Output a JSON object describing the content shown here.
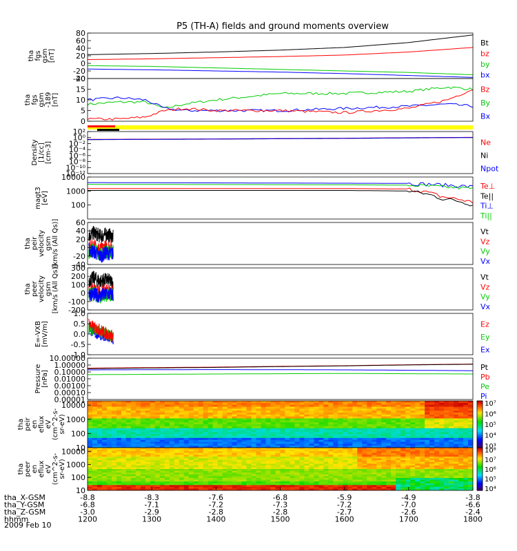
{
  "chart_data": {
    "type": "line",
    "title": "P5 (TH-A) fields and ground moments overview",
    "x_range": [
      1200,
      1800
    ],
    "panels": [
      {
        "id": "fgs-gsm",
        "ylabel": [
          "tha",
          "fgs",
          "gsm",
          "[nT]"
        ],
        "ylim": [
          -40,
          80
        ],
        "ticks": [
          -40,
          -20,
          0,
          20,
          40,
          60,
          80
        ],
        "legend": [
          {
            "name": "Bt",
            "color": "#000000"
          },
          {
            "name": "bz",
            "color": "#ff0000"
          },
          {
            "name": "by",
            "color": "#00cc00"
          },
          {
            "name": "bx",
            "color": "#0000ff"
          }
        ],
        "series": [
          {
            "name": "Bt",
            "color": "#000000",
            "x": [
              1200,
              1300,
              1400,
              1500,
              1600,
              1700,
              1800
            ],
            "values": [
              23,
              26,
              30,
              35,
              42,
              55,
              75
            ]
          },
          {
            "name": "bz",
            "color": "#ff0000",
            "x": [
              1200,
              1300,
              1400,
              1500,
              1600,
              1700,
              1800
            ],
            "values": [
              10,
              12,
              15,
              18,
              22,
              30,
              42
            ]
          },
          {
            "name": "by",
            "color": "#00cc00",
            "x": [
              1200,
              1300,
              1400,
              1500,
              1600,
              1700,
              1800
            ],
            "values": [
              -6,
              -8,
              -12,
              -16,
              -20,
              -24,
              -30
            ]
          },
          {
            "name": "bx",
            "color": "#0000ff",
            "x": [
              1200,
              1300,
              1400,
              1500,
              1600,
              1700,
              1800
            ],
            "values": [
              -15,
              -17,
              -20,
              -23,
              -27,
              -32,
              -37
            ]
          }
        ]
      },
      {
        "id": "fgs-189",
        "ylabel": [
          "tha",
          "fgs",
          "gsm",
          "-189",
          "[nT]"
        ],
        "ylim": [
          0,
          20
        ],
        "ticks": [
          0,
          5,
          10,
          15,
          20
        ],
        "legend": [
          {
            "name": "Bz",
            "color": "#ff0000"
          },
          {
            "name": "By",
            "color": "#00cc00"
          },
          {
            "name": "Bx",
            "color": "#0000ff"
          }
        ],
        "series": [
          {
            "name": "By",
            "color": "#00cc00",
            "x": [
              1200,
              1250,
              1290,
              1320,
              1350,
              1400,
              1500,
              1600,
              1700,
              1760,
              1800
            ],
            "values": [
              8,
              9,
              9,
              6,
              8,
              10,
              13,
              13,
              14,
              16,
              15
            ]
          },
          {
            "name": "Bx",
            "color": "#0000ff",
            "x": [
              1200,
              1250,
              1290,
              1320,
              1350,
              1400,
              1500,
              1600,
              1700,
              1760,
              1800
            ],
            "values": [
              10,
              11,
              10,
              6,
              5,
              5,
              5,
              6,
              7,
              8,
              7
            ]
          },
          {
            "name": "Bz",
            "color": "#ff0000",
            "x": [
              1200,
              1250,
              1290,
              1320,
              1350,
              1400,
              1500,
              1600,
              1700,
              1760,
              1800
            ],
            "values": [
              1,
              1,
              2,
              5,
              6,
              5,
              5,
              4,
              6,
              10,
              15
            ]
          }
        ]
      },
      {
        "id": "density",
        "ylabel": [
          "Density",
          "[1/cc]",
          "[cm-3]"
        ],
        "ylim_log": [
          -12,
          2
        ],
        "ticks_log": [
          -12,
          -10,
          -8,
          -6,
          -4,
          -2,
          0,
          2
        ],
        "legend": [
          {
            "name": "Ne",
            "color": "#ff0000"
          },
          {
            "name": "Ni",
            "color": "#000000"
          },
          {
            "name": "Npot",
            "color": "#0000ff"
          }
        ],
        "series": [
          {
            "name": "Ni",
            "color": "#000000",
            "x": [
              1200,
              1400,
              1600,
              1800
            ],
            "values": [
              0.2,
              0.3,
              0.5,
              1.0
            ]
          },
          {
            "name": "Ne",
            "color": "#ff0000",
            "x": [
              1200,
              1400,
              1600,
              1800
            ],
            "values": [
              0.25,
              0.35,
              0.6,
              1.2
            ]
          },
          {
            "name": "Npot",
            "color": "#0000ff",
            "x": [
              1200,
              1400,
              1600,
              1800
            ],
            "values": [
              0.22,
              0.32,
              0.55,
              1.1
            ]
          }
        ]
      },
      {
        "id": "temperature",
        "ylabel": [
          "magt3",
          "[eV]"
        ],
        "ylim_log": [
          1,
          4
        ],
        "ticks_log": [
          2,
          3,
          4
        ],
        "legend": [
          {
            "name": "Te⊥",
            "color": "#ff0000"
          },
          {
            "name": "Te||",
            "color": "#000000"
          },
          {
            "name": "Ti⊥",
            "color": "#0000ff"
          },
          {
            "name": "Ti||",
            "color": "#00cc00"
          }
        ],
        "series": [
          {
            "name": "Ti⊥",
            "color": "#0000ff",
            "x": [
              1200,
              1400,
              1600,
              1700,
              1750,
              1800
            ],
            "values": [
              4000,
              3800,
              3600,
              3500,
              2800,
              2000
            ]
          },
          {
            "name": "Ti||",
            "color": "#00cc00",
            "x": [
              1200,
              1400,
              1600,
              1700,
              1750,
              1800
            ],
            "values": [
              3000,
              2900,
              2800,
              2600,
              2000,
              1500
            ]
          },
          {
            "name": "Te⊥",
            "color": "#ff0000",
            "x": [
              1200,
              1400,
              1600,
              1700,
              1750,
              1800
            ],
            "values": [
              1500,
              1500,
              1500,
              1400,
              400,
              150
            ]
          },
          {
            "name": "Te||",
            "color": "#000000",
            "x": [
              1200,
              1400,
              1600,
              1700,
              1750,
              1800
            ],
            "values": [
              1100,
              1100,
              1100,
              1000,
              300,
              100
            ]
          }
        ]
      },
      {
        "id": "peir-velocity",
        "ylabel": [
          "tha",
          "peir",
          "velocity",
          "gsm",
          "[km/s (All Qs)]"
        ],
        "ylim": [
          -40,
          60
        ],
        "ticks": [
          -40,
          -20,
          0,
          20,
          40,
          60
        ],
        "legend": [
          {
            "name": "Vt",
            "color": "#000000"
          },
          {
            "name": "Vz",
            "color": "#ff0000"
          },
          {
            "name": "Vy",
            "color": "#00cc00"
          },
          {
            "name": "Vx",
            "color": "#0000ff"
          }
        ],
        "series": [
          {
            "name": "Vt",
            "color": "#000000",
            "x": [
              1202,
              1210,
              1220,
              1230,
              1240
            ],
            "values": [
              30,
              35,
              28,
              32,
              25
            ]
          },
          {
            "name": "Vz",
            "color": "#ff0000",
            "x": [
              1202,
              1210,
              1220,
              1230,
              1240
            ],
            "values": [
              0,
              5,
              -5,
              3,
              0
            ]
          },
          {
            "name": "Vy",
            "color": "#00cc00",
            "x": [
              1202,
              1210,
              1220,
              1230,
              1240
            ],
            "values": [
              -10,
              -5,
              -15,
              -8,
              -10
            ]
          },
          {
            "name": "Vx",
            "color": "#0000ff",
            "x": [
              1202,
              1210,
              1220,
              1230,
              1240
            ],
            "values": [
              -5,
              -10,
              -20,
              -12,
              -15
            ]
          }
        ]
      },
      {
        "id": "peer-velocity",
        "ylabel": [
          "tha",
          "peer",
          "velocity",
          "gsm",
          "[km/s (All Qs)]"
        ],
        "ylim": [
          -200,
          300
        ],
        "ticks": [
          -200,
          -100,
          0,
          100,
          200,
          300
        ],
        "legend": [
          {
            "name": "Vt",
            "color": "#000000"
          },
          {
            "name": "Vz",
            "color": "#ff0000"
          },
          {
            "name": "Vy",
            "color": "#00cc00"
          },
          {
            "name": "Vx",
            "color": "#0000ff"
          }
        ],
        "series": [
          {
            "name": "Vt",
            "color": "#000000",
            "x": [
              1202,
              1210,
              1220,
              1230,
              1240
            ],
            "values": [
              150,
              180,
              140,
              160,
              120
            ]
          },
          {
            "name": "Vz",
            "color": "#ff0000",
            "x": [
              1202,
              1210,
              1220,
              1230,
              1240
            ],
            "values": [
              20,
              40,
              0,
              30,
              10
            ]
          },
          {
            "name": "Vy",
            "color": "#00cc00",
            "x": [
              1202,
              1210,
              1220,
              1230,
              1240
            ],
            "values": [
              -20,
              -10,
              -40,
              -20,
              -30
            ]
          },
          {
            "name": "Vx",
            "color": "#0000ff",
            "x": [
              1202,
              1210,
              1220,
              1230,
              1240
            ],
            "values": [
              0,
              -20,
              -30,
              -10,
              -20
            ]
          }
        ]
      },
      {
        "id": "efield",
        "ylabel": [
          "E=-VXB",
          "[mV/m]"
        ],
        "ylim": [
          -1.0,
          1.0
        ],
        "ticks": [
          -1.0,
          -0.5,
          0.0,
          0.5,
          1.0
        ],
        "tick_labels": [
          "-1.0",
          "-0.5",
          "0.0",
          "0.5",
          "1.0"
        ],
        "legend": [
          {
            "name": "Ez",
            "color": "#ff0000"
          },
          {
            "name": "Ey",
            "color": "#00cc00"
          },
          {
            "name": "Ex",
            "color": "#0000ff"
          }
        ],
        "series": [
          {
            "name": "Ex",
            "color": "#0000ff",
            "x": [
              1202,
              1210,
              1220,
              1230,
              1240
            ],
            "values": [
              0.2,
              0.1,
              0.0,
              -0.1,
              -0.2
            ]
          },
          {
            "name": "Ey",
            "color": "#00cc00",
            "x": [
              1202,
              1210,
              1220,
              1230,
              1240
            ],
            "values": [
              0.3,
              0.2,
              0.1,
              0.0,
              -0.1
            ]
          },
          {
            "name": "Ez",
            "color": "#ff0000",
            "x": [
              1202,
              1210,
              1220,
              1230,
              1240
            ],
            "values": [
              0.5,
              0.3,
              0.2,
              0.0,
              -0.1
            ]
          }
        ]
      },
      {
        "id": "pressure",
        "ylabel": [
          "Pressure",
          "[nPa]"
        ],
        "ylim_log": [
          -5,
          1
        ],
        "ticks_log": [
          -5,
          -4,
          -3,
          -2,
          -1,
          0,
          1
        ],
        "tick_labels": [
          "0.00001",
          "0.00010",
          "0.00100",
          "0.01000",
          "0.10000",
          "1.00000",
          "10.00000"
        ],
        "legend": [
          {
            "name": "Pt",
            "color": "#000000"
          },
          {
            "name": "Pb",
            "color": "#ff0000"
          },
          {
            "name": "Pe",
            "color": "#00cc00"
          },
          {
            "name": "Pi",
            "color": "#0000ff"
          }
        ],
        "series": [
          {
            "name": "Pb",
            "color": "#ff0000",
            "x": [
              1200,
              1400,
              1600,
              1800
            ],
            "values": [
              0.35,
              0.5,
              0.8,
              1.4
            ]
          },
          {
            "name": "Pt",
            "color": "#000000",
            "x": [
              1200,
              1400,
              1600,
              1800
            ],
            "values": [
              0.3,
              0.45,
              0.75,
              1.3
            ]
          },
          {
            "name": "Pi",
            "color": "#0000ff",
            "x": [
              1200,
              1400,
              1600,
              1800
            ],
            "values": [
              0.2,
              0.22,
              0.2,
              0.15
            ]
          },
          {
            "name": "Pe",
            "color": "#00cc00",
            "x": [
              1200,
              1400,
              1600,
              1800
            ],
            "values": [
              0.04,
              0.05,
              0.06,
              0.05
            ]
          }
        ]
      },
      {
        "id": "peir-spec",
        "type": "heatmap",
        "ylabel": [
          "tha",
          "peir",
          "en",
          "eflux",
          "eV",
          "(cm^2-s-",
          "sr-eV)"
        ],
        "ylim_log": [
          1,
          4.3
        ],
        "ticks_log": [
          1,
          2,
          3,
          4
        ],
        "colorbar_ticks": [
          "10³",
          "10⁴",
          "10⁵",
          "10⁶",
          "10⁷"
        ]
      },
      {
        "id": "peer-spec",
        "type": "heatmap",
        "ylabel": [
          "tha",
          "peer",
          "en",
          "eflux",
          "eV",
          "(cm^2-s-",
          "sr-eV)"
        ],
        "ylim_log": [
          1,
          4.3
        ],
        "ticks_log": [
          1,
          2,
          3,
          4
        ],
        "colorbar_ticks": [
          "10⁴",
          "10⁵",
          "10⁶",
          "10⁷",
          "10⁸"
        ]
      }
    ],
    "x_axis": {
      "rows": [
        {
          "label": "tha_X-GSM",
          "values": [
            "-8.8",
            "-8.3",
            "-7.6",
            "-6.8",
            "-5.9",
            "-4.9",
            "-3.8"
          ]
        },
        {
          "label": "tha_Y-GSM",
          "values": [
            "-6.8",
            "-7.1",
            "-7.2",
            "-7.3",
            "-7.2",
            "-7.0",
            "-6.6"
          ]
        },
        {
          "label": "tha_Z-GSM",
          "values": [
            "-3.0",
            "-2.9",
            "-2.8",
            "-2.8",
            "-2.7",
            "-2.6",
            "-2.4"
          ]
        },
        {
          "label": "hhmm",
          "values": [
            "1200",
            "1300",
            "1400",
            "1500",
            "1600",
            "1700",
            "1800"
          ]
        }
      ],
      "date": "2009 Feb 10"
    }
  }
}
